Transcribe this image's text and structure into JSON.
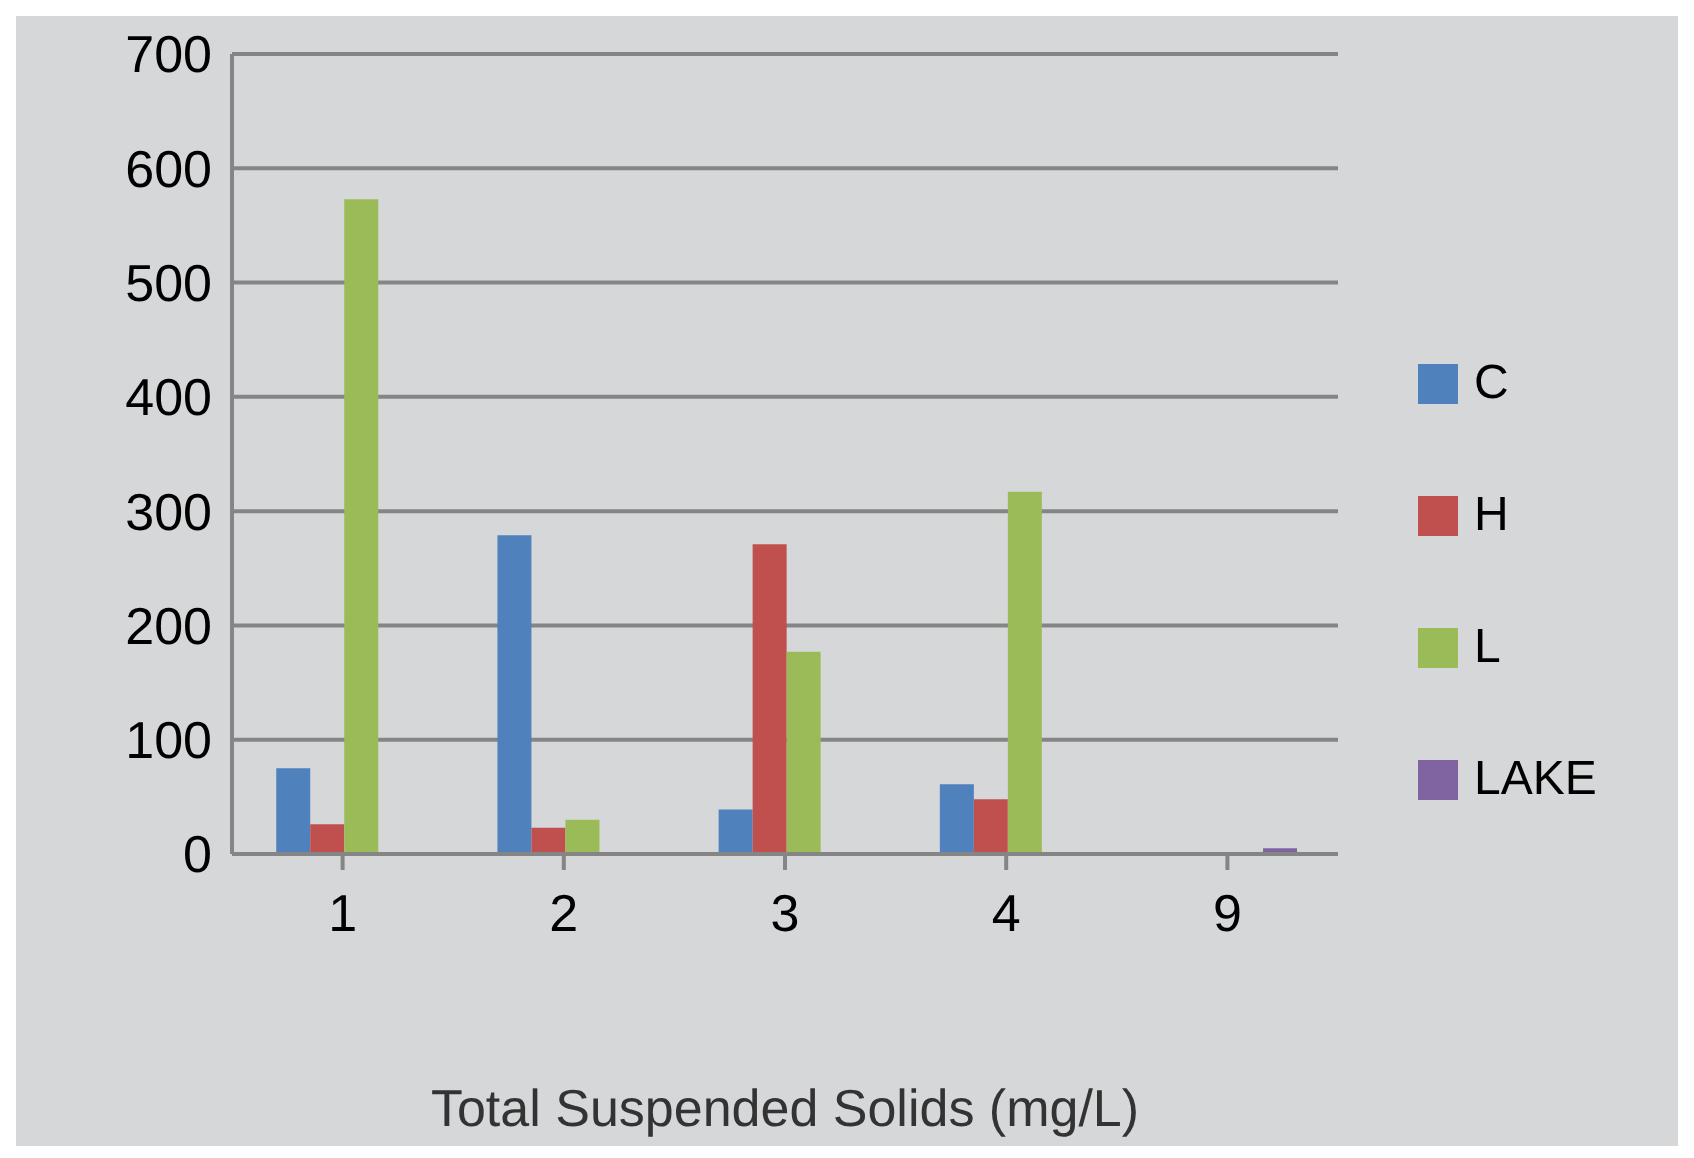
{
  "chart_data": {
    "type": "bar",
    "xlabel": "Total Suspended Solids (mg/L)",
    "categories": [
      "1",
      "2",
      "3",
      "4",
      "9"
    ],
    "series": [
      {
        "name": "C",
        "color": "#4f81bd",
        "values": [
          75,
          279,
          39,
          61,
          null
        ]
      },
      {
        "name": "H",
        "color": "#c0504d",
        "values": [
          26,
          23,
          271,
          48,
          null
        ]
      },
      {
        "name": "L",
        "color": "#9bbb59",
        "values": [
          573,
          30,
          177,
          317,
          null
        ]
      },
      {
        "name": "LAKE",
        "color": "#8064a2",
        "values": [
          null,
          null,
          null,
          null,
          5
        ]
      }
    ],
    "ylim": [
      0,
      700
    ],
    "yticks": [
      0,
      100,
      200,
      300,
      400,
      500,
      600,
      700
    ],
    "grid": "y",
    "legend": "right"
  }
}
